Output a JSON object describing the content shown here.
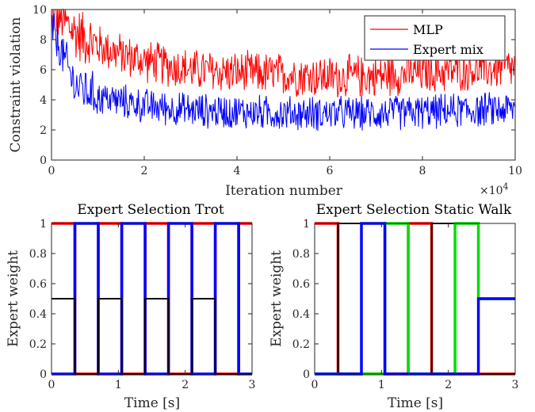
{
  "chart_data": [
    {
      "type": "line",
      "xlabel": "Iteration number",
      "ylabel": "Constraint violation",
      "x_exponent_label": "×10",
      "x_exponent": "4",
      "xlim": [
        0,
        10
      ],
      "ylim": [
        0,
        10
      ],
      "xticks": [
        "0",
        "2",
        "4",
        "6",
        "8",
        "10"
      ],
      "yticks": [
        "0",
        "2",
        "4",
        "6",
        "8",
        "10"
      ],
      "legend_position": "top-right",
      "grid": false,
      "x": [
        0,
        0.5,
        1,
        1.5,
        2,
        3,
        4,
        5,
        6,
        7,
        8,
        9,
        10
      ],
      "series": [
        {
          "name": "MLP",
          "color": "#ff0000",
          "values": [
            10,
            8.5,
            7.6,
            7.0,
            6.6,
            6.0,
            5.8,
            5.7,
            5.5,
            5.6,
            5.8,
            6.0,
            6.1
          ]
        },
        {
          "name": "Expert mix",
          "color": "#0000ff",
          "values": [
            8.8,
            5.0,
            4.2,
            3.9,
            3.6,
            3.3,
            3.2,
            3.1,
            3.1,
            3.1,
            3.2,
            3.3,
            3.4
          ]
        }
      ]
    },
    {
      "type": "line",
      "title": "Expert Selection Trot",
      "xlabel": "Time [s]",
      "ylabel": "Expert weight",
      "xlim": [
        0,
        3
      ],
      "ylim": [
        0,
        1
      ],
      "xticks": [
        "0",
        "1",
        "2",
        "3"
      ],
      "yticks": [
        "0",
        "0.2",
        "0.4",
        "0.6",
        "0.8",
        "1"
      ],
      "grid": false,
      "switch_times": [
        0,
        0.35,
        0.7,
        1.05,
        1.4,
        1.75,
        2.1,
        2.45,
        2.8,
        3.0
      ],
      "series": [
        {
          "color": "#ff0000",
          "values": [
            1,
            0,
            1,
            0,
            1,
            0,
            1,
            0,
            1
          ]
        },
        {
          "color": "#0000ff",
          "values": [
            0,
            1,
            0,
            1,
            0,
            1,
            0,
            1,
            0
          ]
        },
        {
          "color": "#000000",
          "values": [
            0.5,
            0,
            0.5,
            0,
            0.5,
            0,
            0.5,
            0,
            0
          ]
        }
      ]
    },
    {
      "type": "line",
      "title": "Expert Selection Static Walk",
      "xlabel": "Time [s]",
      "ylabel": "Expert weight",
      "xlim": [
        0,
        3
      ],
      "ylim": [
        0,
        1
      ],
      "xticks": [
        "0",
        "1",
        "2",
        "3"
      ],
      "yticks": [
        "0",
        "0.2",
        "0.4",
        "0.6",
        "0.8",
        "1"
      ],
      "grid": false,
      "switch_times": [
        0,
        0.35,
        0.7,
        1.05,
        1.4,
        1.75,
        2.1,
        2.45,
        3.0
      ],
      "series": [
        {
          "color": "#ff0000",
          "values": [
            1,
            0,
            0,
            0,
            1,
            0,
            0,
            0
          ]
        },
        {
          "color": "#000000",
          "values": [
            0,
            1,
            0,
            0,
            0,
            1,
            0,
            0
          ]
        },
        {
          "color": "#00e000",
          "values": [
            0,
            0,
            0,
            1,
            0,
            0,
            1,
            0.5
          ]
        },
        {
          "color": "#0000ff",
          "values": [
            0,
            0,
            1,
            0,
            0,
            0,
            0,
            0.5
          ]
        }
      ]
    }
  ]
}
